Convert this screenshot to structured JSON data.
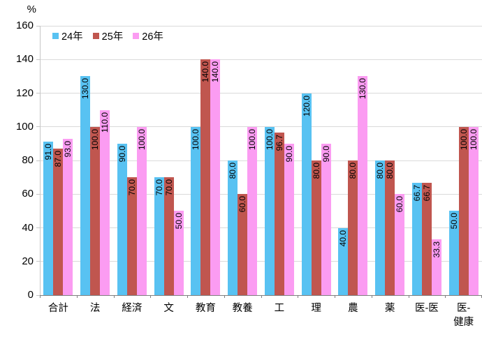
{
  "chart_data": {
    "type": "bar",
    "title": "",
    "unit_label": "%",
    "categories": [
      "合計",
      "法",
      "経済",
      "文",
      "教育",
      "教養",
      "工",
      "理",
      "農",
      "薬",
      "医-医",
      "医-\n健康"
    ],
    "series": [
      {
        "name": "24年",
        "color": "#58C2F2",
        "values": [
          91.0,
          130.0,
          90.0,
          70.0,
          100.0,
          80.0,
          100.0,
          120.0,
          40.0,
          80.0,
          66.7,
          50.0
        ]
      },
      {
        "name": "25年",
        "color": "#C0564F",
        "values": [
          87.0,
          100.0,
          70.0,
          70.0,
          140.0,
          60.0,
          96.7,
          80.0,
          80.0,
          80.0,
          66.7,
          100.0
        ]
      },
      {
        "name": "26年",
        "color": "#FB9CF2",
        "values": [
          93.0,
          110.0,
          100.0,
          50.0,
          140.0,
          100.0,
          90.0,
          90.0,
          130.0,
          60.0,
          33.3,
          100.0
        ]
      }
    ],
    "ylim": [
      0,
      160
    ],
    "yticks": [
      0,
      20,
      40,
      60,
      80,
      100,
      120,
      140,
      160
    ],
    "grid": "horizontal",
    "legend_position": "top-left-inside",
    "data_label_format": "one-decimal-rotated-vertical-inside-end",
    "colors": {
      "background": "#FFFFFF",
      "gridline": "#DADADA",
      "y_axis": "#C6C6C6",
      "x_axis": "#7F7F7F",
      "label_text": "#000000"
    }
  }
}
